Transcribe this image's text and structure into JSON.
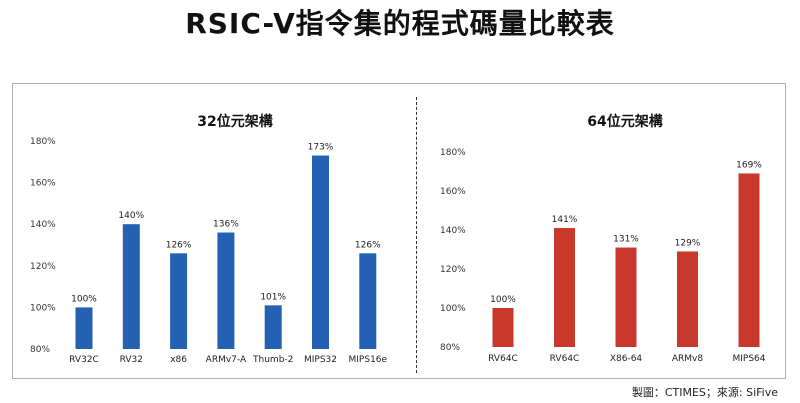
{
  "title": "RSIC-V指令集的程式碼量比較表",
  "footer": "製圖：CTIMES；來源: SiFive",
  "chart_data": [
    {
      "type": "bar",
      "title": "32位元架構",
      "categories": [
        "RV32C",
        "RV32",
        "x86",
        "ARMv7-A",
        "Thumb-2",
        "MIPS32",
        "MIPS16e"
      ],
      "values": [
        100,
        140,
        126,
        136,
        101,
        173,
        126
      ],
      "data_labels": [
        "100%",
        "140%",
        "126%",
        "136%",
        "101%",
        "173%",
        "126%"
      ],
      "ylim": [
        80,
        180
      ],
      "yticks": [
        "80%",
        "100%",
        "120%",
        "140%",
        "160%",
        "180%"
      ],
      "color": "#2461b3",
      "grid": false,
      "legend": "none"
    },
    {
      "type": "bar",
      "title": "64位元架構",
      "categories": [
        "RV64C",
        "RV64C",
        "X86-64",
        "ARMv8",
        "MIPS64"
      ],
      "values": [
        100,
        141,
        131,
        129,
        169
      ],
      "data_labels": [
        "100%",
        "141%",
        "131%",
        "129%",
        "169%"
      ],
      "ylim": [
        80,
        180
      ],
      "yticks": [
        "80%",
        "100%",
        "120%",
        "140%",
        "160%",
        "180%"
      ],
      "color": "#c8382b",
      "grid": false,
      "legend": "none"
    }
  ]
}
